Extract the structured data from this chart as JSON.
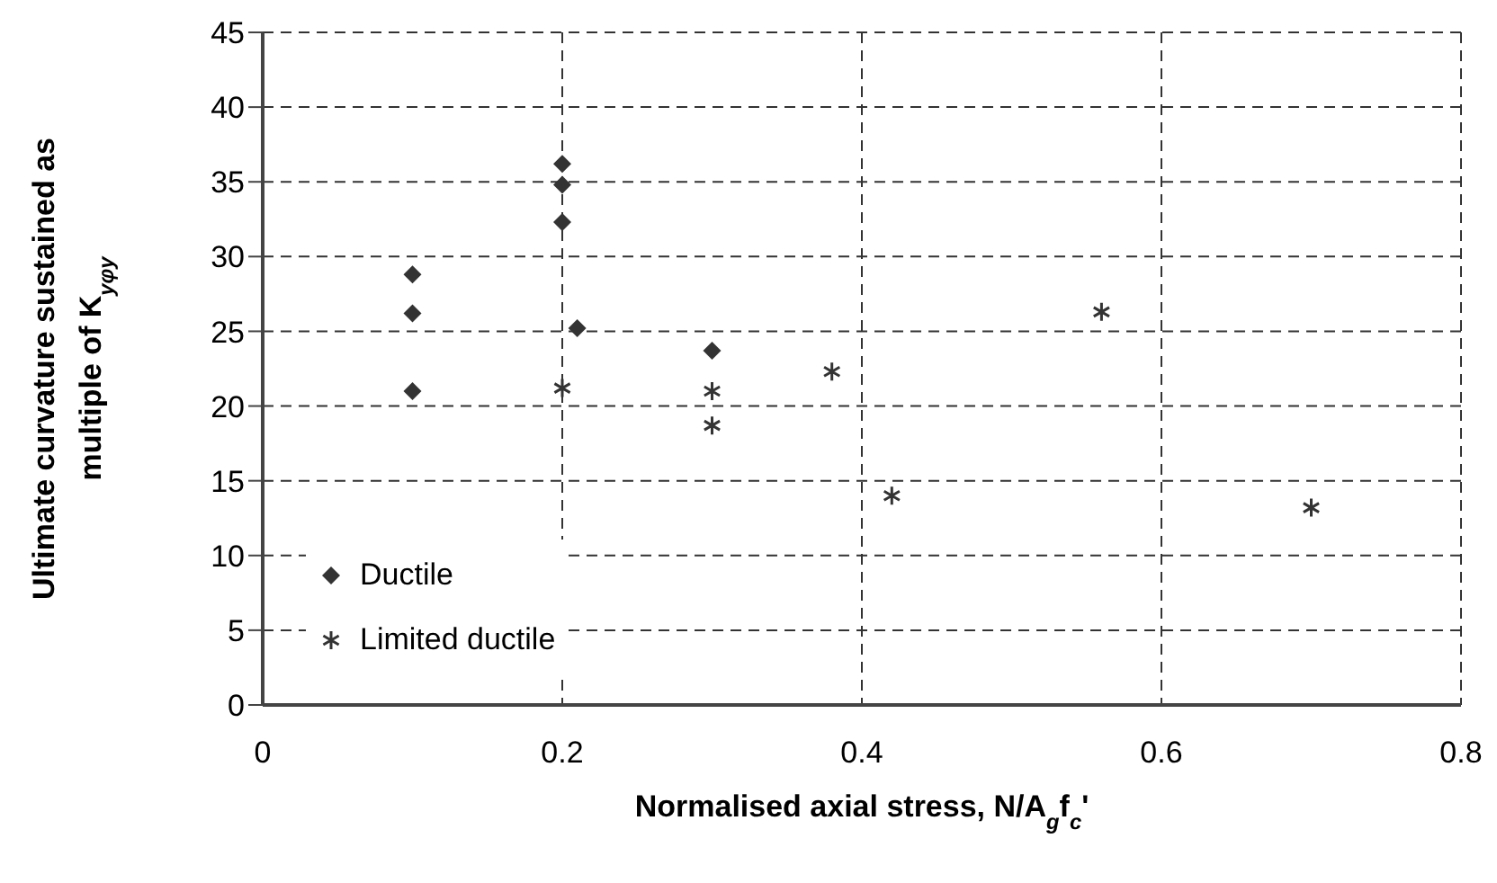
{
  "chart_data": {
    "type": "scatter",
    "xlabel": "Normalised axial stress, N/A$_{g}$f$_{c}$'",
    "ylabel": "Ultimate curvature sustained as multiple of K$_{yφy}$",
    "series": [
      {
        "name": "Ductile",
        "color": "#333333",
        "marker": "diamond",
        "x": [
          0.1,
          0.1,
          0.1,
          0.2,
          0.2,
          0.2,
          0.21,
          0.3
        ],
        "values": [
          28.8,
          26.2,
          21,
          36.2,
          34.8,
          32.3,
          25.2,
          23.7
        ]
      },
      {
        "name": "Limited ductile",
        "color": "#333333",
        "marker": "cross",
        "x": [
          0.2,
          0.3,
          0.3,
          0.38,
          0.42,
          0.56,
          0.7
        ],
        "values": [
          21.2,
          21,
          18.7,
          22.3,
          14,
          26.3,
          13.2
        ]
      }
    ],
    "xlim": [
      0,
      0.8
    ],
    "xticks": [
      0,
      0.2,
      0.4,
      0.6,
      0.8
    ],
    "ylim": [
      0,
      45
    ],
    "yticks": [
      0,
      5,
      10,
      15,
      20,
      25,
      30,
      35,
      40,
      45
    ],
    "grid": true,
    "legend": "bottom left"
  }
}
